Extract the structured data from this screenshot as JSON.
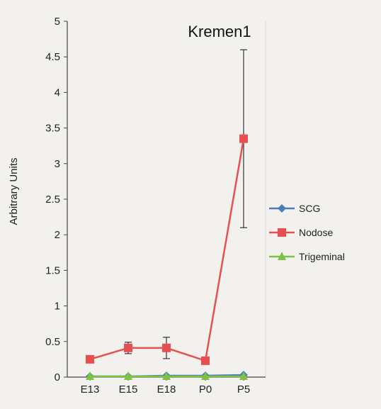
{
  "chart_data": {
    "type": "line",
    "title": "Kremen1",
    "xlabel": "",
    "ylabel": "Arbitrary Units",
    "categories": [
      "E13",
      "E15",
      "E18",
      "P0",
      "P5"
    ],
    "ylim": [
      0,
      5
    ],
    "yticks": [
      "0",
      "0.5",
      "1",
      "1.5",
      "2",
      "2.5",
      "3",
      "3.5",
      "4",
      "4.5",
      "5"
    ],
    "grid": false,
    "legend_position": "right",
    "series": [
      {
        "name": "SCG",
        "color": "#4a7ebb",
        "marker": "diamond",
        "values": [
          0.01,
          0.01,
          0.02,
          0.02,
          0.03
        ],
        "errors": [
          0.0,
          0.0,
          0.0,
          0.0,
          0.0
        ]
      },
      {
        "name": "Nodose",
        "color": "#e8504f",
        "marker": "square",
        "values": [
          0.25,
          0.41,
          0.41,
          0.23,
          3.35
        ],
        "errors": [
          0.0,
          0.08,
          0.15,
          0.0,
          1.25
        ]
      },
      {
        "name": "Trigeminal",
        "color": "#7dc242",
        "marker": "triangle",
        "values": [
          0.01,
          0.01,
          0.01,
          0.01,
          0.01
        ],
        "errors": [
          0.0,
          0.0,
          0.0,
          0.0,
          0.0
        ]
      }
    ]
  }
}
